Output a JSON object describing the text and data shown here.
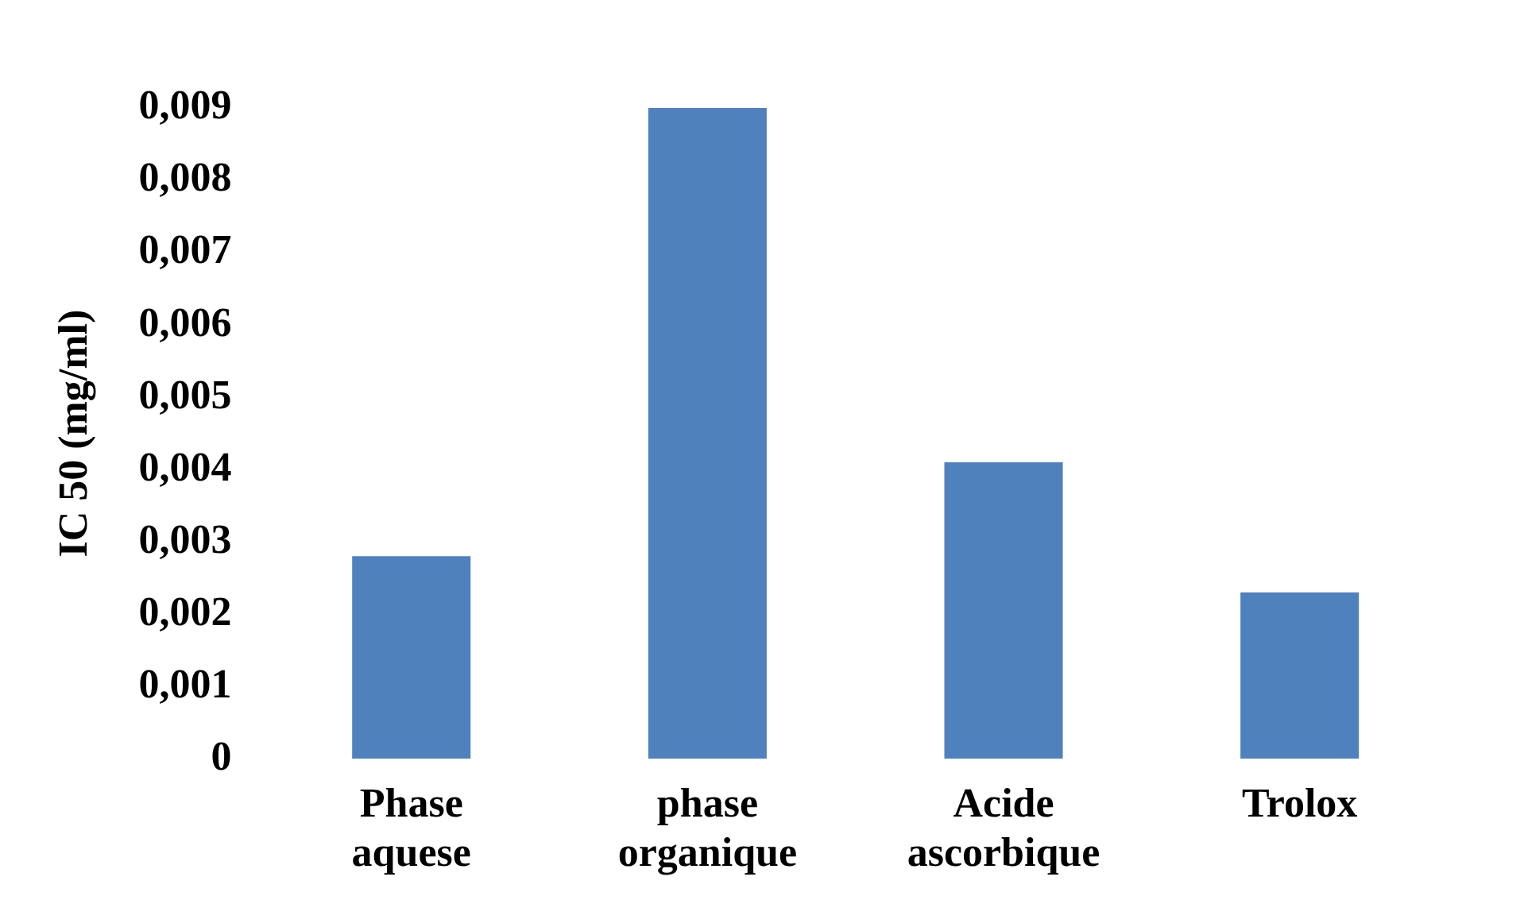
{
  "chart_data": {
    "type": "bar",
    "ylabel": "IC 50 (mg/ml)",
    "categories": [
      "Phase aquese",
      "phase organique",
      "Acide ascorbique",
      "Trolox"
    ],
    "values": [
      0.0028,
      0.009,
      0.0041,
      0.0023
    ],
    "color": "#4f81bd",
    "ylim": [
      0,
      0.009
    ],
    "yticks": [
      {
        "value": 0,
        "label": "0"
      },
      {
        "value": 0.001,
        "label": "0,001"
      },
      {
        "value": 0.002,
        "label": "0,002"
      },
      {
        "value": 0.003,
        "label": "0,003"
      },
      {
        "value": 0.004,
        "label": "0,004"
      },
      {
        "value": 0.005,
        "label": "0,005"
      },
      {
        "value": 0.006,
        "label": "0,006"
      },
      {
        "value": 0.007,
        "label": "0,007"
      },
      {
        "value": 0.008,
        "label": "0,008"
      },
      {
        "value": 0.009,
        "label": "0,009"
      }
    ],
    "grid": false,
    "legend": false
  }
}
